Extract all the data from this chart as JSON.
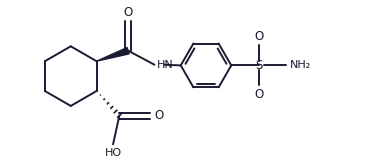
{
  "bg_color": "#ffffff",
  "line_color": "#1a1a32",
  "lw": 1.4,
  "figsize": [
    3.66,
    1.6
  ],
  "dpi": 100,
  "xlim": [
    0.0,
    9.5
  ],
  "ylim": [
    -0.5,
    4.0
  ]
}
